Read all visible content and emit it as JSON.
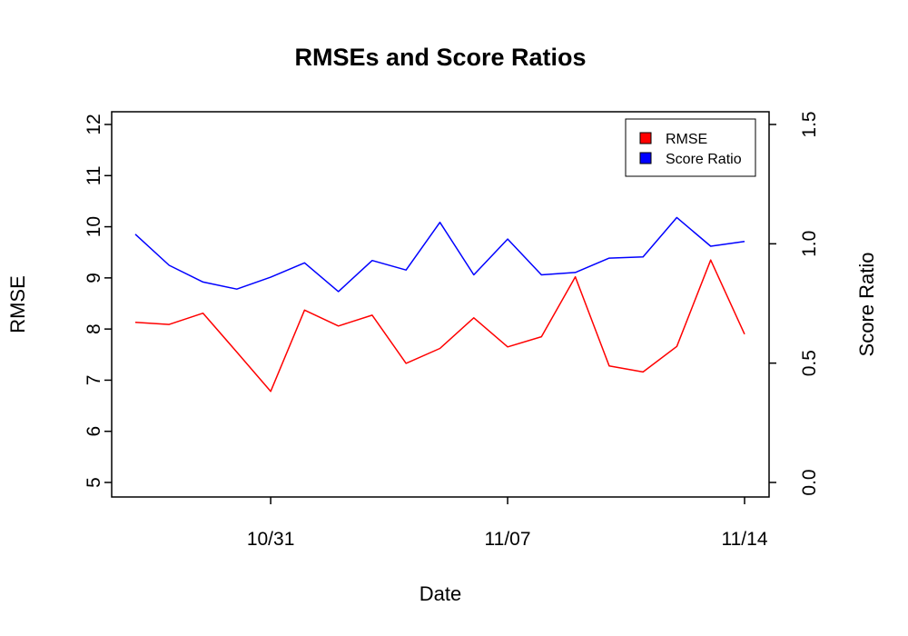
{
  "chart_data": {
    "type": "line",
    "title": "RMSEs and Score Ratios",
    "xlabel": "Date",
    "ylabel_left": "RMSE",
    "ylabel_right": "Score Ratio",
    "x_tick_labels": [
      "10/31",
      "11/07",
      "11/14"
    ],
    "x_tick_dates": [
      "2022-10-31",
      "2022-11-07",
      "2022-11-14"
    ],
    "x_dates": [
      "2022-10-27",
      "2022-10-28",
      "2022-10-29",
      "2022-10-30",
      "2022-10-31",
      "2022-11-01",
      "2022-11-02",
      "2022-11-03",
      "2022-11-04",
      "2022-11-05",
      "2022-11-06",
      "2022-11-07",
      "2022-11-08",
      "2022-11-09",
      "2022-11-10",
      "2022-11-11",
      "2022-11-12",
      "2022-11-13",
      "2022-11-14"
    ],
    "y_left_ticks": [
      "5",
      "6",
      "7",
      "8",
      "9",
      "10",
      "11",
      "12"
    ],
    "y_left_range": [
      5,
      12
    ],
    "y_right_ticks": [
      "0.0",
      "0.5",
      "1.0",
      "1.5"
    ],
    "y_right_range": [
      0,
      1.5
    ],
    "grid": false,
    "legend_position": "top-right",
    "series": [
      {
        "name": "RMSE",
        "axis": "left",
        "color": "#ff0000",
        "values": [
          8.13,
          8.09,
          8.31,
          7.55,
          6.78,
          8.37,
          8.06,
          8.27,
          7.33,
          7.62,
          8.22,
          7.65,
          7.85,
          9.02,
          7.28,
          7.16,
          7.66,
          9.35,
          7.9
        ]
      },
      {
        "name": "Score Ratio",
        "axis": "right",
        "color": "#0000ff",
        "values": [
          1.04,
          0.91,
          0.84,
          0.81,
          0.86,
          0.92,
          0.8,
          0.93,
          0.89,
          1.09,
          0.87,
          1.02,
          0.87,
          0.88,
          0.94,
          0.945,
          1.11,
          0.99,
          1.01
        ]
      }
    ]
  }
}
